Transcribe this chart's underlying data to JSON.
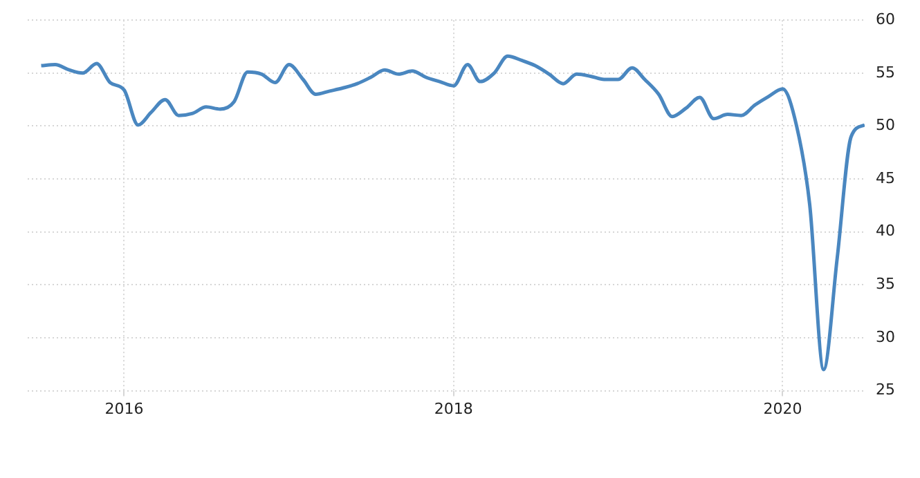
{
  "chart_data": {
    "type": "line",
    "x": [
      "2015-07",
      "2015-08",
      "2015-09",
      "2015-10",
      "2015-11",
      "2015-12",
      "2016-01",
      "2016-02",
      "2016-03",
      "2016-04",
      "2016-05",
      "2016-06",
      "2016-07",
      "2016-08",
      "2016-09",
      "2016-10",
      "2016-11",
      "2016-12",
      "2017-01",
      "2017-02",
      "2017-03",
      "2017-04",
      "2017-05",
      "2017-06",
      "2017-07",
      "2017-08",
      "2017-09",
      "2017-10",
      "2017-11",
      "2017-12",
      "2018-01",
      "2018-02",
      "2018-03",
      "2018-04",
      "2018-05",
      "2018-06",
      "2018-07",
      "2018-08",
      "2018-09",
      "2018-10",
      "2018-11",
      "2018-12",
      "2019-01",
      "2019-02",
      "2019-03",
      "2019-04",
      "2019-05",
      "2019-06",
      "2019-07",
      "2019-08",
      "2019-09",
      "2019-10",
      "2019-11",
      "2019-12",
      "2020-01",
      "2020-02",
      "2020-03",
      "2020-04",
      "2020-05",
      "2020-06",
      "2020-07"
    ],
    "series": [
      {
        "color": "#4a87c0",
        "values": [
          55.7,
          55.8,
          55.3,
          55.0,
          55.9,
          54.1,
          53.4,
          50.1,
          51.3,
          52.5,
          51.0,
          51.2,
          51.8,
          51.6,
          52.3,
          55.1,
          54.9,
          54.1,
          55.8,
          54.4,
          53.0,
          53.3,
          53.6,
          54.0,
          54.6,
          55.3,
          54.9,
          55.2,
          54.6,
          54.2,
          53.8,
          55.8,
          54.2,
          55.0,
          56.6,
          56.2,
          55.7,
          54.9,
          54.0,
          54.9,
          54.7,
          54.4,
          54.4,
          55.5,
          54.4,
          53.0,
          50.9,
          51.7,
          52.7,
          50.7,
          51.1,
          51.0,
          52.0,
          52.8,
          53.5,
          50.0,
          42.6,
          27.0,
          37.5,
          49.0,
          50.1
        ]
      }
    ],
    "xlim": [
      "2015-06",
      "2020-07"
    ],
    "xticks": [
      "2016",
      "2018",
      "2020"
    ],
    "ylim": [
      25,
      60
    ],
    "yticks": [
      25,
      30,
      35,
      40,
      45,
      50,
      55,
      60
    ],
    "grid": true,
    "legend": false
  }
}
